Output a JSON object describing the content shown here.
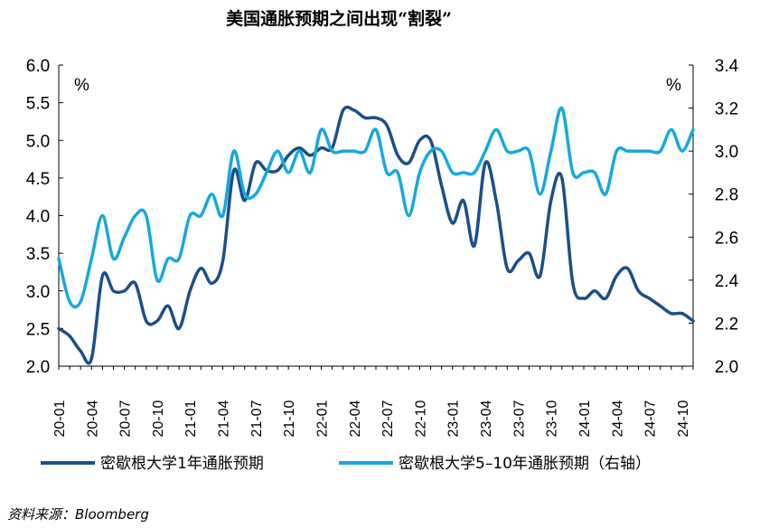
{
  "chart_data": {
    "type": "line",
    "title": "美国通胀预期之间出现“割裂”",
    "y_left_unit": "%",
    "y_right_unit": "%",
    "y_left": {
      "min": 2.0,
      "max": 6.0,
      "ticks": [
        "2.0",
        "2.5",
        "3.0",
        "3.5",
        "4.0",
        "4.5",
        "5.0",
        "5.5",
        "6.0"
      ]
    },
    "y_right": {
      "min": 2.0,
      "max": 3.4,
      "ticks": [
        "2.0",
        "2.2",
        "2.4",
        "2.6",
        "2.8",
        "3.0",
        "3.2",
        "3.4"
      ]
    },
    "x_tick_labels": [
      "20-01",
      "20-04",
      "20-07",
      "20-10",
      "21-01",
      "21-04",
      "21-07",
      "21-10",
      "22-01",
      "22-04",
      "22-07",
      "22-10",
      "23-01",
      "23-04",
      "23-07",
      "23-10",
      "24-01",
      "24-04",
      "24-07",
      "24-10"
    ],
    "months": [
      "20-01",
      "20-02",
      "20-03",
      "20-04",
      "20-05",
      "20-06",
      "20-07",
      "20-08",
      "20-09",
      "20-10",
      "20-11",
      "20-12",
      "21-01",
      "21-02",
      "21-03",
      "21-04",
      "21-05",
      "21-06",
      "21-07",
      "21-08",
      "21-09",
      "21-10",
      "21-11",
      "21-12",
      "22-01",
      "22-02",
      "22-03",
      "22-04",
      "22-05",
      "22-06",
      "22-07",
      "22-08",
      "22-09",
      "22-10",
      "22-11",
      "22-12",
      "23-01",
      "23-02",
      "23-03",
      "23-04",
      "23-05",
      "23-06",
      "23-07",
      "23-08",
      "23-09",
      "23-10",
      "23-11",
      "23-12",
      "24-01",
      "24-02",
      "24-03",
      "24-04",
      "24-05",
      "24-06",
      "24-07",
      "24-08",
      "24-09",
      "24-10",
      "24-11"
    ],
    "series": [
      {
        "name": "密歇根大学1年通胀预期",
        "axis": "left",
        "color": "#1b4f8a",
        "values": [
          2.5,
          2.4,
          2.2,
          2.1,
          3.2,
          3.0,
          3.0,
          3.1,
          2.6,
          2.6,
          2.8,
          2.5,
          3.0,
          3.3,
          3.1,
          3.4,
          4.6,
          4.2,
          4.7,
          4.6,
          4.6,
          4.8,
          4.9,
          4.8,
          4.9,
          4.9,
          5.4,
          5.4,
          5.3,
          5.3,
          5.2,
          4.8,
          4.7,
          5.0,
          5.0,
          4.4,
          3.9,
          4.2,
          3.6,
          4.7,
          4.2,
          3.3,
          3.4,
          3.5,
          3.2,
          4.2,
          4.5,
          3.1,
          2.9,
          3.0,
          2.9,
          3.2,
          3.3,
          3.0,
          2.9,
          2.8,
          2.7,
          2.7,
          2.6
        ]
      },
      {
        "name": "密歇根大学5–10年通胀预期（右轴）",
        "axis": "right",
        "color": "#17a8df",
        "values": [
          2.5,
          2.3,
          2.3,
          2.5,
          2.7,
          2.5,
          2.6,
          2.7,
          2.7,
          2.4,
          2.5,
          2.5,
          2.7,
          2.7,
          2.8,
          2.7,
          3.0,
          2.8,
          2.8,
          2.9,
          3.0,
          2.9,
          3.0,
          2.9,
          3.1,
          3.0,
          3.0,
          3.0,
          3.0,
          3.1,
          2.9,
          2.9,
          2.7,
          2.9,
          3.0,
          3.0,
          2.9,
          2.9,
          2.9,
          3.0,
          3.1,
          3.0,
          3.0,
          3.0,
          2.8,
          3.0,
          3.2,
          2.9,
          2.9,
          2.9,
          2.8,
          3.0,
          3.0,
          3.0,
          3.0,
          3.0,
          3.1,
          3.0,
          3.1
        ]
      }
    ],
    "legend_position": "bottom",
    "source": "资料来源：Bloomberg",
    "grid": false
  }
}
